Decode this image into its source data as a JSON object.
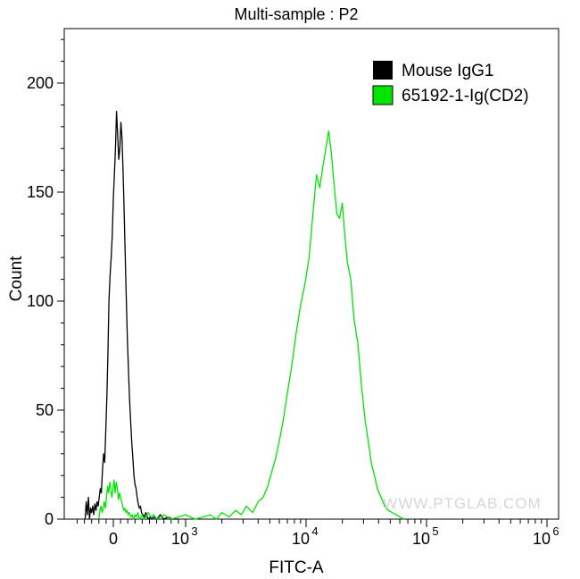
{
  "chart_data": {
    "type": "histogram",
    "title": "Multi-sample : P2",
    "xlabel": "FITC-A",
    "ylabel": "Count",
    "x_scale": "biexponential",
    "ylim": [
      0,
      225
    ],
    "y_ticks": [
      {
        "value": 0,
        "label": "0"
      },
      {
        "value": 50,
        "label": "50"
      },
      {
        "value": 100,
        "label": "100"
      },
      {
        "value": 150,
        "label": "150"
      },
      {
        "value": 200,
        "label": "200"
      }
    ],
    "x_ticks": [
      {
        "value": 0,
        "label": "0"
      },
      {
        "value": 1000,
        "label": "10",
        "exp": "3"
      },
      {
        "value": 10000,
        "label": "10",
        "exp": "4"
      },
      {
        "value": 100000,
        "label": "10",
        "exp": "5"
      },
      {
        "value": 1000000,
        "label": "10",
        "exp": "6"
      }
    ],
    "legend_position": "top-right",
    "watermark": "WWW.PTGLAB.COM",
    "series": [
      {
        "name": "Mouse IgG1",
        "color": "#000000",
        "points": [
          [
            -390,
            0
          ],
          [
            -375,
            8
          ],
          [
            -360,
            2
          ],
          [
            -345,
            10
          ],
          [
            -330,
            0
          ],
          [
            -315,
            5
          ],
          [
            -300,
            3
          ],
          [
            -285,
            6
          ],
          [
            -270,
            2
          ],
          [
            -255,
            7
          ],
          [
            -240,
            4
          ],
          [
            -225,
            8
          ],
          [
            -210,
            6
          ],
          [
            -195,
            10
          ],
          [
            -180,
            14
          ],
          [
            -165,
            12
          ],
          [
            -150,
            22
          ],
          [
            -135,
            30
          ],
          [
            -120,
            26
          ],
          [
            -105,
            40
          ],
          [
            -90,
            55
          ],
          [
            -75,
            75
          ],
          [
            -60,
            100
          ],
          [
            -45,
            112
          ],
          [
            -30,
            120
          ],
          [
            -15,
            130
          ],
          [
            0,
            147
          ],
          [
            15,
            158
          ],
          [
            30,
            170
          ],
          [
            45,
            187
          ],
          [
            60,
            176
          ],
          [
            75,
            165
          ],
          [
            90,
            170
          ],
          [
            105,
            182
          ],
          [
            120,
            175
          ],
          [
            135,
            160
          ],
          [
            150,
            140
          ],
          [
            165,
            120
          ],
          [
            180,
            100
          ],
          [
            195,
            82
          ],
          [
            210,
            68
          ],
          [
            225,
            55
          ],
          [
            240,
            45
          ],
          [
            255,
            35
          ],
          [
            270,
            28
          ],
          [
            285,
            20
          ],
          [
            300,
            16
          ],
          [
            315,
            14
          ],
          [
            330,
            10
          ],
          [
            345,
            7
          ],
          [
            360,
            5
          ],
          [
            375,
            6
          ],
          [
            390,
            3
          ],
          [
            410,
            2
          ],
          [
            430,
            1
          ],
          [
            450,
            3
          ],
          [
            470,
            1
          ],
          [
            490,
            0
          ],
          [
            510,
            1
          ],
          [
            530,
            0
          ],
          [
            560,
            1
          ],
          [
            600,
            0
          ],
          [
            650,
            2
          ],
          [
            700,
            0
          ],
          [
            760,
            1
          ],
          [
            820,
            0
          ],
          [
            900,
            0
          ]
        ]
      },
      {
        "name": "65192-1-Ig(CD2)",
        "color": "#00e600",
        "points": [
          [
            -200,
            0
          ],
          [
            -185,
            4
          ],
          [
            -170,
            6
          ],
          [
            -155,
            3
          ],
          [
            -140,
            5
          ],
          [
            -125,
            8
          ],
          [
            -110,
            5
          ],
          [
            -95,
            10
          ],
          [
            -80,
            15
          ],
          [
            -65,
            12
          ],
          [
            -50,
            17
          ],
          [
            -35,
            13
          ],
          [
            -20,
            10
          ],
          [
            -5,
            14
          ],
          [
            10,
            18
          ],
          [
            25,
            12
          ],
          [
            40,
            17
          ],
          [
            55,
            14
          ],
          [
            70,
            9
          ],
          [
            85,
            12
          ],
          [
            100,
            10
          ],
          [
            115,
            8
          ],
          [
            130,
            6
          ],
          [
            145,
            4
          ],
          [
            160,
            5
          ],
          [
            175,
            3
          ],
          [
            190,
            4
          ],
          [
            205,
            2
          ],
          [
            220,
            3
          ],
          [
            240,
            1
          ],
          [
            260,
            2
          ],
          [
            280,
            0
          ],
          [
            300,
            2
          ],
          [
            320,
            1
          ],
          [
            340,
            3
          ],
          [
            360,
            0
          ],
          [
            380,
            1
          ],
          [
            400,
            2
          ],
          [
            420,
            0
          ],
          [
            450,
            1
          ],
          [
            480,
            3
          ],
          [
            520,
            1
          ],
          [
            560,
            2
          ],
          [
            600,
            0
          ],
          [
            650,
            1
          ],
          [
            700,
            2
          ],
          [
            800,
            0
          ],
          [
            900,
            1
          ],
          [
            1000,
            2
          ],
          [
            1200,
            0
          ],
          [
            1400,
            1
          ],
          [
            1600,
            2
          ],
          [
            1800,
            0
          ],
          [
            2000,
            3
          ],
          [
            2300,
            1
          ],
          [
            2600,
            4
          ],
          [
            2900,
            2
          ],
          [
            3200,
            6
          ],
          [
            3600,
            3
          ],
          [
            4000,
            8
          ],
          [
            4400,
            10
          ],
          [
            4800,
            15
          ],
          [
            5200,
            22
          ],
          [
            5600,
            28
          ],
          [
            6000,
            36
          ],
          [
            6500,
            46
          ],
          [
            7000,
            58
          ],
          [
            7600,
            70
          ],
          [
            8200,
            84
          ],
          [
            9000,
            98
          ],
          [
            9800,
            108
          ],
          [
            10600,
            120
          ],
          [
            11400,
            140
          ],
          [
            12200,
            158
          ],
          [
            13000,
            152
          ],
          [
            13800,
            162
          ],
          [
            14600,
            170
          ],
          [
            15400,
            178
          ],
          [
            16200,
            168
          ],
          [
            17000,
            155
          ],
          [
            18000,
            140
          ],
          [
            19000,
            138
          ],
          [
            20000,
            145
          ],
          [
            21000,
            130
          ],
          [
            22000,
            118
          ],
          [
            23500,
            110
          ],
          [
            25000,
            92
          ],
          [
            27000,
            80
          ],
          [
            29000,
            60
          ],
          [
            31000,
            45
          ],
          [
            33000,
            35
          ],
          [
            35000,
            25
          ],
          [
            37000,
            20
          ],
          [
            39000,
            14
          ],
          [
            42000,
            10
          ],
          [
            45000,
            6
          ],
          [
            48000,
            4
          ],
          [
            52000,
            3
          ],
          [
            56000,
            2
          ],
          [
            60000,
            1
          ],
          [
            65000,
            0
          ]
        ]
      }
    ]
  }
}
